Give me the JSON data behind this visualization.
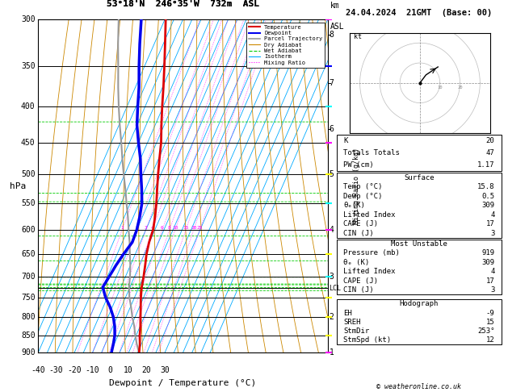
{
  "title_left": "53°18'N  246°35'W  732m  ASL",
  "title_right": "24.04.2024  21GMT  (Base: 00)",
  "xlabel": "Dewpoint / Temperature (°C)",
  "ylabel_left": "hPa",
  "km_ticks": [
    1,
    2,
    3,
    4,
    5,
    6,
    7,
    8
  ],
  "km_pressures": [
    900,
    800,
    700,
    600,
    500,
    430,
    370,
    315
  ],
  "lcl_pressure": 727,
  "isotherm_color": "#00aaff",
  "dry_adiabat_color": "#cc8800",
  "wet_adiabat_color": "#00cc00",
  "mixing_ratio_color": "#ff00ff",
  "temperature_color": "#dd0000",
  "dewpoint_color": "#0000ee",
  "parcel_color": "#999999",
  "temp_profile_p": [
    900,
    875,
    850,
    825,
    800,
    775,
    750,
    725,
    700,
    675,
    650,
    625,
    600,
    575,
    550,
    525,
    500,
    475,
    450,
    425,
    400,
    375,
    350,
    325,
    300
  ],
  "temp_profile_t": [
    15.8,
    14.2,
    12.0,
    10.2,
    8.0,
    5.8,
    3.5,
    1.5,
    0.0,
    -1.8,
    -3.8,
    -5.2,
    -6.0,
    -8.0,
    -10.5,
    -13.5,
    -16.5,
    -19.5,
    -22.5,
    -26.5,
    -30.5,
    -34.5,
    -39.0,
    -44.0,
    -49.5
  ],
  "dewp_profile_p": [
    900,
    875,
    850,
    825,
    800,
    775,
    750,
    725,
    700,
    675,
    650,
    625,
    600,
    575,
    550,
    525,
    500,
    475,
    450,
    425,
    400,
    375,
    350,
    325,
    300
  ],
  "dewp_profile_t": [
    0.5,
    -0.5,
    -1.8,
    -4.0,
    -7.0,
    -11.0,
    -16.0,
    -20.0,
    -19.0,
    -18.0,
    -16.5,
    -14.5,
    -15.0,
    -16.5,
    -18.5,
    -22.0,
    -26.0,
    -30.0,
    -35.0,
    -40.0,
    -44.0,
    -48.0,
    -53.0,
    -58.0,
    -63.0
  ],
  "parcel_p": [
    900,
    875,
    850,
    825,
    800,
    775,
    750,
    725,
    700,
    675,
    650,
    625,
    600,
    575,
    550,
    525,
    500,
    475,
    450,
    425,
    400,
    375,
    350,
    325,
    300
  ],
  "parcel_t": [
    15.8,
    12.5,
    9.5,
    6.8,
    3.5,
    0.5,
    -2.8,
    -5.5,
    -7.5,
    -10.0,
    -13.0,
    -16.0,
    -19.5,
    -23.0,
    -27.0,
    -31.0,
    -35.5,
    -40.0,
    -44.5,
    -49.5,
    -54.5,
    -59.5,
    -64.5,
    -70.0,
    -75.5
  ],
  "mixing_ratio_values": [
    1,
    2,
    3,
    4,
    6,
    8,
    10,
    15,
    20,
    25
  ],
  "stats": {
    "K": 20,
    "Totals_Totals": 47,
    "PW_cm": 1.17,
    "Surface_Temp": 15.8,
    "Surface_Dewp": 0.5,
    "Surface_ThetaE": 309,
    "Surface_LI": 4,
    "Surface_CAPE": 17,
    "Surface_CIN": 3,
    "MU_Pressure": 919,
    "MU_ThetaE": 309,
    "MU_LI": 4,
    "MU_CAPE": 17,
    "MU_CIN": 3,
    "Hodo_EH": -9,
    "Hodo_SREH": 15,
    "Hodo_StmDir": 253,
    "Hodo_StmSpd": 12
  },
  "wind_barb_pressures": [
    900,
    850,
    800,
    750,
    700,
    650,
    600,
    550,
    500,
    450,
    400,
    350,
    300
  ],
  "wind_barb_colors": [
    "#ff00ff",
    "#ffff00",
    "#ffff00",
    "#ffff00",
    "#00ffff",
    "#ffff00",
    "#ff00ff",
    "#00ffff",
    "#ffff00",
    "#ff00ff",
    "#00ffff",
    "#0000ff",
    "#ff00ff"
  ],
  "copyright": "© weatheronline.co.uk"
}
